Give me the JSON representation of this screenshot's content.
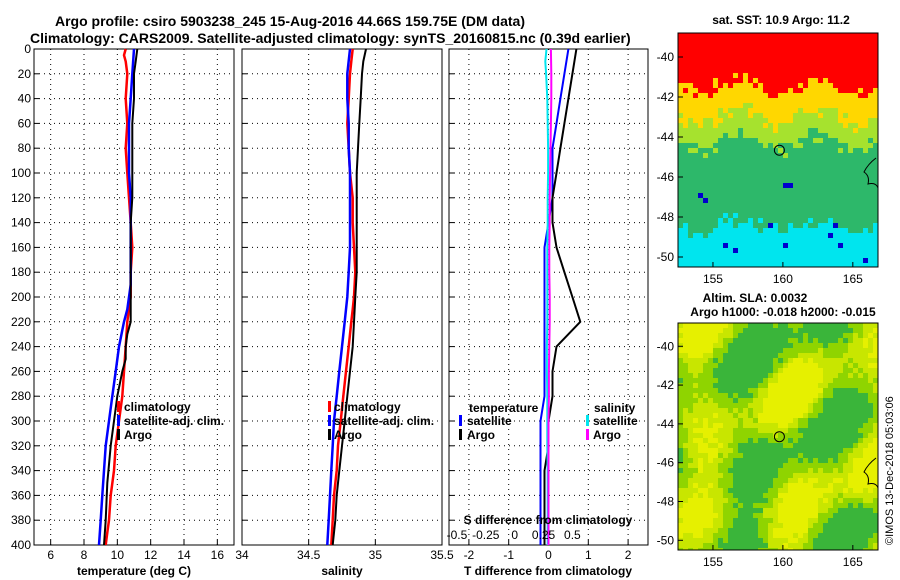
{
  "figure": {
    "title_line1": "Argo profile: csiro 5903238_245 15-Aug-2016 44.66S 159.75E (DM data)",
    "title_line2": "Climatology: CARS2009. Satellite-adjusted climatology: synTS_20160815.nc (0.39d earlier)",
    "stamp": "©IMOS 13-Dec-2018 05:03:06"
  },
  "colors": {
    "climatology": "#ff0000",
    "satellite": "#0000ff",
    "argo": "#000000",
    "sal_satellite": "#00e5ee",
    "sal_argo": "#ff00ff"
  },
  "chart_data": [
    {
      "type": "line",
      "name": "temperature-profile",
      "xlabel": "temperature (deg C)",
      "xlim": [
        5,
        17
      ],
      "xticks": [
        "6",
        "8",
        "10",
        "12",
        "14",
        "16"
      ],
      "ylim": [
        400,
        0
      ],
      "yticks": [
        "0",
        "20",
        "40",
        "60",
        "80",
        "100",
        "120",
        "140",
        "160",
        "180",
        "200",
        "220",
        "240",
        "260",
        "280",
        "300",
        "320",
        "340",
        "360",
        "380",
        "400"
      ],
      "legend": [
        "climatology",
        "satellite-adj. clim.",
        "Argo"
      ],
      "series": [
        {
          "name": "climatology",
          "color": "#ff0000",
          "width": 2.5,
          "x": [
            10.5,
            10.4,
            10.5,
            10.6,
            10.5,
            10.6,
            10.5,
            10.6,
            10.7,
            10.8,
            10.9,
            10.8,
            10.8,
            10.7,
            10.6,
            10.5,
            10.4,
            10.3,
            10.1,
            9.9,
            9.8,
            9.6,
            9.5,
            9.4,
            9.3
          ],
          "y": [
            0,
            5,
            10,
            20,
            40,
            60,
            80,
            100,
            120,
            140,
            160,
            180,
            200,
            210,
            220,
            240,
            260,
            280,
            300,
            320,
            340,
            360,
            380,
            390,
            400
          ]
        },
        {
          "name": "satellite-adj. clim.",
          "color": "#0000ff",
          "width": 2.5,
          "x": [
            11.0,
            10.9,
            10.8,
            10.7,
            10.7,
            10.7,
            10.8,
            10.8,
            10.8,
            10.8,
            10.8,
            10.7,
            10.6,
            10.4,
            10.1,
            9.9,
            9.7,
            9.5,
            9.3,
            9.2,
            9.1,
            9.0,
            8.9
          ],
          "y": [
            0,
            20,
            40,
            60,
            80,
            100,
            120,
            140,
            160,
            180,
            190,
            200,
            210,
            220,
            240,
            260,
            280,
            300,
            320,
            340,
            360,
            380,
            400
          ]
        },
        {
          "name": "Argo",
          "color": "#000000",
          "width": 2,
          "x": [
            11.2,
            11.1,
            11.0,
            11.0,
            10.9,
            10.9,
            10.9,
            10.9,
            10.8,
            10.8,
            10.8,
            10.8,
            10.8,
            10.6,
            10.5,
            10.5,
            10.3,
            10.0,
            9.8,
            9.6,
            9.4,
            9.3,
            9.2
          ],
          "y": [
            0,
            10,
            20,
            40,
            60,
            80,
            100,
            120,
            140,
            160,
            180,
            200,
            220,
            230,
            240,
            250,
            260,
            280,
            300,
            320,
            350,
            380,
            400
          ]
        }
      ]
    },
    {
      "type": "line",
      "name": "salinity-profile",
      "xlabel": "salinity",
      "xlim": [
        34,
        35.5
      ],
      "xticks": [
        "34",
        "34.5",
        "35",
        "35.5"
      ],
      "ylim": [
        400,
        0
      ],
      "legend": [
        "climatology",
        "satellite-adj. clim.",
        "Argo"
      ],
      "series": [
        {
          "name": "climatology",
          "color": "#ff0000",
          "width": 2.5,
          "x": [
            34.83,
            34.82,
            34.81,
            34.8,
            34.79,
            34.8,
            34.81,
            34.83,
            34.83,
            34.84,
            34.85,
            34.84,
            34.83,
            34.82,
            34.81,
            34.8,
            34.78,
            34.76,
            34.74,
            34.72,
            34.71,
            34.69,
            34.68,
            34.67
          ],
          "y": [
            0,
            10,
            20,
            40,
            60,
            80,
            100,
            120,
            140,
            160,
            180,
            200,
            210,
            220,
            230,
            240,
            260,
            280,
            300,
            320,
            340,
            360,
            380,
            400
          ]
        },
        {
          "name": "satellite-adj. clim.",
          "color": "#0000ff",
          "width": 2.5,
          "x": [
            34.81,
            34.79,
            34.79,
            34.8,
            34.8,
            34.81,
            34.81,
            34.81,
            34.81,
            34.8,
            34.79,
            34.77,
            34.75,
            34.73,
            34.71,
            34.69,
            34.68,
            34.67,
            34.66,
            34.65,
            34.64
          ],
          "y": [
            0,
            20,
            40,
            60,
            80,
            100,
            120,
            140,
            160,
            180,
            200,
            220,
            240,
            260,
            280,
            300,
            320,
            340,
            360,
            380,
            400
          ]
        },
        {
          "name": "Argo",
          "color": "#000000",
          "width": 2,
          "x": [
            34.93,
            34.91,
            34.9,
            34.89,
            34.88,
            34.87,
            34.86,
            34.86,
            34.86,
            34.86,
            34.86,
            34.85,
            34.84,
            34.83,
            34.81,
            34.79,
            34.77,
            34.75,
            34.73,
            34.71,
            34.7,
            34.68
          ],
          "y": [
            0,
            10,
            20,
            40,
            60,
            80,
            100,
            120,
            140,
            160,
            180,
            200,
            220,
            240,
            260,
            280,
            300,
            320,
            340,
            360,
            380,
            400
          ]
        }
      ]
    },
    {
      "type": "line",
      "name": "difference-profile",
      "xlabel": "T difference from climatology",
      "xlim": [
        -2.5,
        2.5
      ],
      "xticks": [
        "-2",
        "-1",
        "0",
        "1",
        "2"
      ],
      "top_axis_label": "S difference from climatology",
      "top_xticks": [
        "-0.5",
        "-0.25",
        "0",
        "0.25",
        "0.5"
      ],
      "ylim": [
        400,
        0
      ],
      "legend_temperature_title": "temperature",
      "legend_salinity_title": "salinity",
      "legend_temperature": [
        "satellite",
        "Argo"
      ],
      "legend_salinity": [
        "satellite",
        "Argo"
      ],
      "series": [
        {
          "name": "T satellite",
          "color": "#0000ff",
          "width": 2,
          "x": [
            0.5,
            0.4,
            0.3,
            0.2,
            0.1,
            0.1,
            0.1,
            0.0,
            -0.1,
            -0.1,
            -0.1,
            -0.1,
            -0.1,
            -0.1,
            -0.1,
            -0.2,
            -0.2,
            -0.2,
            -0.2,
            -0.2,
            -0.2,
            -0.2
          ],
          "y": [
            0,
            20,
            40,
            60,
            80,
            100,
            120,
            140,
            160,
            180,
            200,
            220,
            240,
            260,
            280,
            300,
            320,
            340,
            360,
            380,
            390,
            400
          ]
        },
        {
          "name": "T Argo",
          "color": "#000000",
          "width": 2,
          "x": [
            0.7,
            0.6,
            0.5,
            0.4,
            0.3,
            0.2,
            0.1,
            0.1,
            0.2,
            0.4,
            0.6,
            0.8,
            0.5,
            0.2,
            0.1,
            0.1,
            0.0,
            0.0,
            -0.1,
            -0.1,
            -0.1,
            -0.1
          ],
          "y": [
            0,
            20,
            40,
            60,
            80,
            100,
            120,
            140,
            160,
            180,
            200,
            220,
            230,
            240,
            260,
            280,
            300,
            320,
            340,
            360,
            380,
            400
          ]
        },
        {
          "name": "S satellite",
          "color": "#00e5ee",
          "width": 2,
          "x": [
            -0.05,
            -0.08,
            -0.06,
            -0.03,
            -0.02,
            -0.01,
            -0.01,
            -0.02,
            -0.02,
            -0.03,
            -0.03,
            -0.03,
            -0.03,
            -0.04,
            -0.04,
            -0.03,
            -0.03,
            -0.03,
            -0.02,
            -0.02,
            -0.02
          ],
          "y": [
            0,
            10,
            20,
            40,
            60,
            80,
            100,
            120,
            140,
            160,
            180,
            200,
            220,
            240,
            260,
            280,
            300,
            320,
            340,
            360,
            400
          ]
        },
        {
          "name": "S Argo",
          "color": "#ff00ff",
          "width": 2,
          "x": [
            0.06,
            0.07,
            0.07,
            0.06,
            0.05,
            0.04,
            0.03,
            0.03,
            0.02,
            0.02,
            0.03,
            0.03,
            0.02,
            0.01,
            0.01,
            0.0,
            0.0,
            0.0,
            0.0,
            0.0
          ],
          "y": [
            0,
            20,
            40,
            60,
            80,
            100,
            120,
            140,
            160,
            180,
            200,
            220,
            240,
            260,
            280,
            300,
            320,
            340,
            360,
            400
          ]
        }
      ]
    },
    {
      "type": "heatmap",
      "name": "sst-map",
      "title": "sat. SST: 10.9 Argo: 11.2",
      "xlim": [
        152.5,
        166.8
      ],
      "ylim": [
        -50.5,
        -38.8
      ],
      "xticks": [
        "155",
        "160",
        "165"
      ],
      "yticks": [
        "-40",
        "-42",
        "-44",
        "-46",
        "-48",
        "-50"
      ],
      "marker": {
        "lon": 159.75,
        "lat": -44.66
      },
      "color_bands": [
        {
          "from_lat": -38.8,
          "to_lat": -41.5,
          "color": "#ff0000"
        },
        {
          "from_lat": -41.5,
          "to_lat": -43.0,
          "color": "#ffd700"
        },
        {
          "from_lat": -43.0,
          "to_lat": -44.3,
          "color": "#a6e22e"
        },
        {
          "from_lat": -44.3,
          "to_lat": -48.5,
          "color": "#2db86a"
        },
        {
          "from_lat": -48.5,
          "to_lat": -50.5,
          "color": "#00e5ee"
        }
      ]
    },
    {
      "type": "heatmap",
      "name": "sla-map",
      "title_line1": "Altim. SLA: 0.0032",
      "title_line2": "Argo h1000: -0.018 h2000: -0.015",
      "xlim": [
        152.5,
        166.8
      ],
      "ylim": [
        -50.5,
        -38.8
      ],
      "xticks": [
        "155",
        "160",
        "165"
      ],
      "yticks": [
        "-40",
        "-42",
        "-44",
        "-46",
        "-48",
        "-50"
      ],
      "marker": {
        "lon": 159.75,
        "lat": -44.66
      },
      "palette": [
        "#3ab53a",
        "#8fd400",
        "#c8e600",
        "#e6f000"
      ]
    }
  ]
}
